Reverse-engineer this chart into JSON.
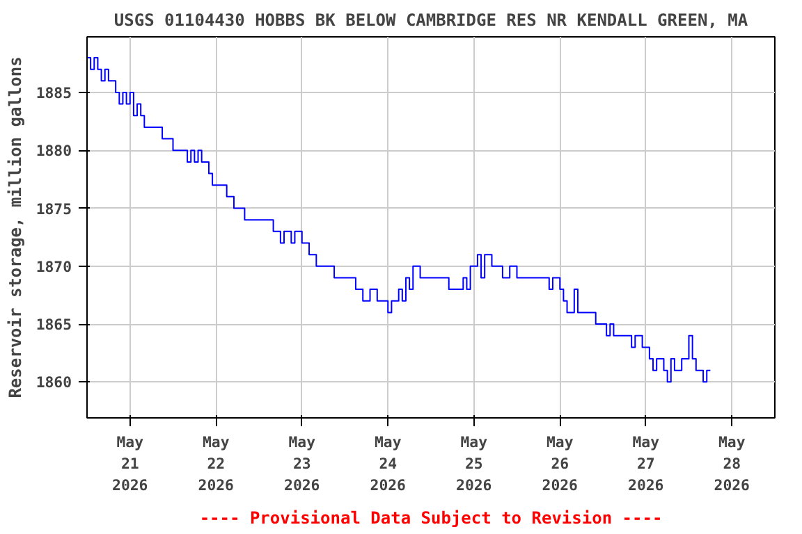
{
  "chart_data": {
    "type": "step",
    "title": "USGS 01104430 HOBBS BK BELOW CAMBRIDGE RES NR KENDALL GREEN, MA",
    "ylabel": "Reservoir storage, million gallons",
    "annotations": [
      "---- Provisional Data Subject to Revision ----"
    ],
    "x": [
      "2026-05-20T12:00",
      "2026-05-20T13:00",
      "2026-05-20T14:00",
      "2026-05-20T15:00",
      "2026-05-20T16:00",
      "2026-05-20T17:00",
      "2026-05-20T18:00",
      "2026-05-20T20:00",
      "2026-05-20T21:00",
      "2026-05-20T22:00",
      "2026-05-20T23:00",
      "2026-05-21T00:00",
      "2026-05-21T01:00",
      "2026-05-21T02:00",
      "2026-05-21T03:00",
      "2026-05-21T04:00",
      "2026-05-21T09:00",
      "2026-05-21T12:00",
      "2026-05-21T16:00",
      "2026-05-21T17:00",
      "2026-05-21T18:00",
      "2026-05-21T19:00",
      "2026-05-21T20:00",
      "2026-05-21T22:00",
      "2026-05-21T23:00",
      "2026-05-22T03:00",
      "2026-05-22T05:00",
      "2026-05-22T08:00",
      "2026-05-22T16:00",
      "2026-05-22T18:00",
      "2026-05-22T19:00",
      "2026-05-22T21:00",
      "2026-05-22T22:00",
      "2026-05-23T00:00",
      "2026-05-23T02:00",
      "2026-05-23T04:00",
      "2026-05-23T09:00",
      "2026-05-23T15:00",
      "2026-05-23T17:00",
      "2026-05-23T19:00",
      "2026-05-23T21:00",
      "2026-05-24T00:00",
      "2026-05-24T01:00",
      "2026-05-24T03:00",
      "2026-05-24T04:00",
      "2026-05-24T05:00",
      "2026-05-24T06:00",
      "2026-05-24T07:00",
      "2026-05-24T09:00",
      "2026-05-24T17:00",
      "2026-05-24T21:00",
      "2026-05-24T22:00",
      "2026-05-24T23:00",
      "2026-05-25T01:00",
      "2026-05-25T02:00",
      "2026-05-25T03:00",
      "2026-05-25T05:00",
      "2026-05-25T08:00",
      "2026-05-25T10:00",
      "2026-05-25T12:00",
      "2026-05-25T21:00",
      "2026-05-25T22:00",
      "2026-05-26T00:00",
      "2026-05-26T01:00",
      "2026-05-26T02:00",
      "2026-05-26T04:00",
      "2026-05-26T05:00",
      "2026-05-26T10:00",
      "2026-05-26T13:00",
      "2026-05-26T14:00",
      "2026-05-26T15:00",
      "2026-05-26T20:00",
      "2026-05-26T21:00",
      "2026-05-26T23:00",
      "2026-05-27T01:00",
      "2026-05-27T02:00",
      "2026-05-27T03:00",
      "2026-05-27T05:00",
      "2026-05-27T06:00",
      "2026-05-27T07:00",
      "2026-05-27T08:00",
      "2026-05-27T10:00",
      "2026-05-27T12:00",
      "2026-05-27T13:00",
      "2026-05-27T14:00",
      "2026-05-27T16:00",
      "2026-05-27T17:00",
      "2026-05-27T18:00"
    ],
    "series": [
      {
        "color": "#0000ff",
        "values": [
          1888,
          1887,
          1888,
          1887,
          1886,
          1887,
          1886,
          1885,
          1884,
          1885,
          1884,
          1885,
          1883,
          1884,
          1883,
          1882,
          1881,
          1880,
          1879,
          1880,
          1879,
          1880,
          1879,
          1878,
          1877,
          1876,
          1875,
          1874,
          1873,
          1872,
          1873,
          1872,
          1873,
          1872,
          1871,
          1870,
          1869,
          1868,
          1867,
          1868,
          1867,
          1866,
          1867,
          1868,
          1867,
          1869,
          1868,
          1870,
          1869,
          1868,
          1869,
          1868,
          1870,
          1871,
          1869,
          1871,
          1870,
          1869,
          1870,
          1869,
          1868,
          1869,
          1868,
          1867,
          1866,
          1868,
          1866,
          1865,
          1864,
          1865,
          1864,
          1863,
          1864,
          1863,
          1862,
          1861,
          1862,
          1861,
          1860,
          1862,
          1861,
          1862,
          1864,
          1862,
          1861,
          1860,
          1861,
          1861
        ]
      }
    ],
    "xlim": [
      "2026-05-20T12:00",
      "2026-05-28T12:00"
    ],
    "xticks": [
      {
        "value": "2026-05-21",
        "label": "May\n21\n2026"
      },
      {
        "value": "2026-05-22",
        "label": "May\n22\n2026"
      },
      {
        "value": "2026-05-23",
        "label": "May\n23\n2026"
      },
      {
        "value": "2026-05-24",
        "label": "May\n24\n2026"
      },
      {
        "value": "2026-05-25",
        "label": "May\n25\n2026"
      },
      {
        "value": "2026-05-26",
        "label": "May\n26\n2026"
      },
      {
        "value": "2026-05-27",
        "label": "May\n27\n2026"
      },
      {
        "value": "2026-05-28",
        "label": "May\n28\n2026"
      }
    ],
    "ylim": [
      1856.9,
      1889.8
    ],
    "yticks": [
      1860,
      1865,
      1870,
      1875,
      1880,
      1885
    ],
    "grid": true,
    "marker": "none",
    "line_style": "solid"
  }
}
